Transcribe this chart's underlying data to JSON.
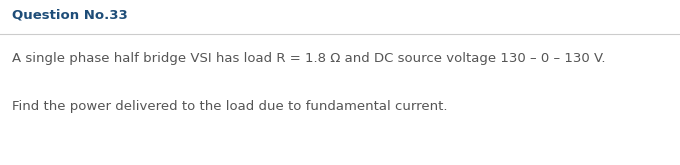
{
  "title": "Question No.33",
  "title_color": "#1e4d78",
  "title_fontsize": 9.5,
  "line_color": "#cccccc",
  "body_color": "#555555",
  "body_fontsize": 9.5,
  "line1": "A single phase half bridge VSI has load R = 1.8 Ω and DC source voltage 130 – 0 – 130 V.",
  "line2": "Find the power delivered to the load due to fundamental current.",
  "background_color": "#ffffff",
  "fig_width": 6.8,
  "fig_height": 1.65,
  "dpi": 100
}
